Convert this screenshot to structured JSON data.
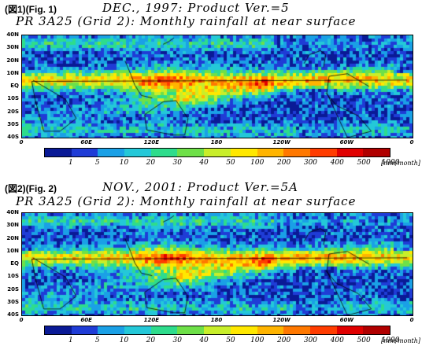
{
  "figures": [
    {
      "tag": "(図1)",
      "tag_en": "(Fig. 1)",
      "date_line": "DEC., 1997:  Product Ver.=5",
      "title": "PR 3A25 (Grid 2): Monthly rainfall at near surface",
      "seed": 11
    },
    {
      "tag": "(図2)",
      "tag_en": "(Fig. 2)",
      "date_line": "NOV., 2001:  Product Ver.=5A",
      "title": "PR 3A25 (Grid 2): Monthly rainfall at near surface",
      "seed": 29
    }
  ],
  "latitude_labels": [
    "40N",
    "30N",
    "20N",
    "10N",
    "EQ",
    "10S",
    "20S",
    "30S",
    "40S"
  ],
  "longitude_labels": [
    "0",
    "60E",
    "120E",
    "180",
    "120W",
    "60W",
    "0"
  ],
  "colorbar": {
    "values": [
      "1",
      "5",
      "10",
      "20",
      "30",
      "40",
      "50",
      "100",
      "200",
      "300",
      "400",
      "500",
      "1000"
    ],
    "unit": "[mm/month]",
    "colors": [
      "#0a1a96",
      "#1f3cd6",
      "#1aa0e6",
      "#24c8d8",
      "#2edc8c",
      "#6ee048",
      "#c8ee2a",
      "#ffe800",
      "#ffb400",
      "#ff7800",
      "#ff3c00",
      "#e00000",
      "#b00000"
    ]
  }
}
